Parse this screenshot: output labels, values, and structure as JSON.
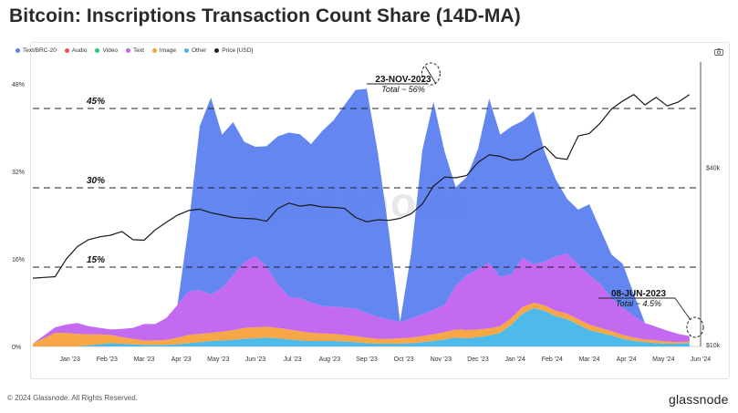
{
  "title": "Bitcoin: Inscriptions Transaction Count Share (14D-MA)",
  "footer": "© 2024 Glassnode. All Rights Reserved.",
  "brand": "glassnode",
  "watermark": "glassnode",
  "legend": [
    {
      "label": "Text/BRC-20",
      "color": "#5b7ff0"
    },
    {
      "label": "Audio",
      "color": "#f0504f"
    },
    {
      "label": "Video",
      "color": "#2ecc71"
    },
    {
      "label": "Text",
      "color": "#c062f0"
    },
    {
      "label": "Image",
      "color": "#f7a23b"
    },
    {
      "label": "Other",
      "color": "#45b6e8"
    },
    {
      "label": "Price [USD]",
      "color": "#222222"
    }
  ],
  "chart_data": {
    "type": "area",
    "stacked": true,
    "x_labels": [
      "Jan '23",
      "Feb '23",
      "Mar '23",
      "Apr '23",
      "May '23",
      "Jun '23",
      "Jul '23",
      "Aug '23",
      "Sep '23",
      "Oct '23",
      "Nov '23",
      "Dec '23",
      "Jan '24",
      "Feb '24",
      "Mar '24",
      "Apr '24",
      "May '24",
      "Jun '24"
    ],
    "y_left_ticks": [
      "0%",
      "16%",
      "32%",
      "48%"
    ],
    "y_left_range": [
      0,
      48
    ],
    "y_right_ticks": [
      "$10k",
      "$40k"
    ],
    "y_right_log": true,
    "reference_lines": [
      {
        "label": "45%",
        "value": 43.5
      },
      {
        "label": "30%",
        "value": 29
      },
      {
        "label": "15%",
        "value": 14.5
      }
    ],
    "annotations": [
      {
        "date": "23-NOV-2023",
        "text": "Total ~ 56%",
        "x": 10.73,
        "y": 54
      },
      {
        "date": "08-JUN-2023",
        "text": "Total ~ 4.5%",
        "x": 17.3,
        "y": 3.5
      }
    ],
    "x": [
      0,
      0.3,
      0.6,
      0.9,
      1.2,
      1.5,
      1.8,
      2.1,
      2.4,
      2.7,
      3.0,
      3.3,
      3.6,
      3.9,
      4.2,
      4.5,
      4.8,
      5.1,
      5.4,
      5.7,
      6.0,
      6.3,
      6.6,
      6.9,
      7.2,
      7.5,
      7.8,
      8.1,
      8.4,
      8.7,
      9.0,
      9.3,
      9.6,
      9.9,
      10.2,
      10.5,
      10.8,
      11.1,
      11.4,
      11.7,
      12.0,
      12.3,
      12.6,
      12.9,
      13.2,
      13.5,
      13.8,
      14.1,
      14.4,
      14.7,
      15.0,
      15.3,
      15.6,
      15.9,
      16.2,
      16.5,
      16.8,
      17.1,
      17.4,
      17.7
    ],
    "series": [
      {
        "name": "Other",
        "color": "#45b6e8",
        "values": [
          0,
          0,
          0,
          0,
          0,
          0.2,
          0.4,
          0.6,
          0.5,
          0.4,
          0.3,
          0.3,
          0.3,
          0.4,
          0.6,
          0.8,
          1,
          1.1,
          1.2,
          1.4,
          1.5,
          1.6,
          1.5,
          1.3,
          1.1,
          1,
          1,
          1,
          0.9,
          0.8,
          0.6,
          0.5,
          0.5,
          0.5,
          0.6,
          0.8,
          1,
          1.3,
          1.6,
          1.5,
          1.7,
          2,
          2.5,
          4,
          6,
          7,
          6.5,
          5.5,
          5,
          4,
          3,
          2.5,
          2,
          1.4,
          1,
          0.8,
          0.6,
          0.5,
          0.5,
          0.6
        ]
      },
      {
        "name": "Image",
        "color": "#f7a23b",
        "values": [
          0.5,
          1.5,
          2.5,
          2.5,
          2.3,
          2,
          1.8,
          1.5,
          1.2,
          1,
          0.8,
          0.8,
          0.9,
          1.2,
          1.5,
          1.5,
          1.5,
          1.6,
          1.8,
          2,
          2,
          2,
          1.9,
          1.8,
          1.7,
          1.5,
          1.4,
          1.3,
          1.2,
          1.1,
          1,
          0.9,
          0.9,
          1,
          1,
          1.1,
          1.2,
          1.3,
          1.5,
          1.5,
          1.4,
          1.3,
          1.2,
          1.2,
          1.2,
          1,
          1,
          1,
          1,
          1,
          1,
          0.9,
          0.8,
          0.7,
          0.6,
          0.5,
          0.5,
          0.4,
          0.3,
          0.3
        ]
      },
      {
        "name": "Text",
        "color": "#c062f0",
        "values": [
          0,
          0.5,
          1,
          1.5,
          2,
          1.5,
          1.2,
          1,
          1.5,
          2,
          3,
          3,
          4,
          6,
          8,
          8,
          7,
          8,
          10,
          12,
          13,
          11,
          8,
          6,
          6,
          5.5,
          5,
          5,
          5,
          5,
          4.5,
          4,
          3.5,
          3,
          3.5,
          4,
          4.5,
          5,
          8,
          10,
          11,
          12,
          9,
          8,
          9,
          7,
          8,
          10,
          11,
          10,
          9,
          8,
          6,
          5,
          4,
          3,
          2.5,
          2,
          1.5,
          1
        ]
      },
      {
        "name": "Text/BRC-20",
        "color": "#5b7ff0",
        "values": [
          0,
          0,
          0,
          0,
          0,
          0,
          0,
          0,
          0,
          0,
          0,
          0,
          0,
          0,
          12,
          30,
          36,
          28,
          28,
          22,
          20,
          22,
          27,
          30,
          30,
          29,
          32,
          34,
          37,
          40,
          41,
          30,
          16,
          0,
          12,
          30,
          38,
          28,
          18,
          18,
          22,
          30,
          26,
          27,
          25,
          28,
          20,
          14,
          10,
          10,
          13,
          10,
          8,
          8,
          4,
          0,
          0,
          0,
          0,
          0
        ]
      }
    ],
    "price": {
      "name": "Price [USD]",
      "values": [
        16800,
        16900,
        17000,
        19500,
        21500,
        22700,
        23200,
        23500,
        24200,
        22700,
        22600,
        24500,
        26000,
        27500,
        28500,
        28800,
        28000,
        27500,
        27000,
        26800,
        26700,
        26200,
        28900,
        30200,
        29500,
        29800,
        29300,
        29200,
        29000,
        27000,
        26100,
        26500,
        26400,
        26800,
        27800,
        30000,
        34500,
        37000,
        36800,
        37500,
        41500,
        44000,
        43500,
        42200,
        42500,
        45000,
        47000,
        43000,
        42500,
        51000,
        52000,
        56500,
        63000,
        67000,
        70500,
        65000,
        69000,
        64500,
        66500,
        70500
      ]
    }
  }
}
